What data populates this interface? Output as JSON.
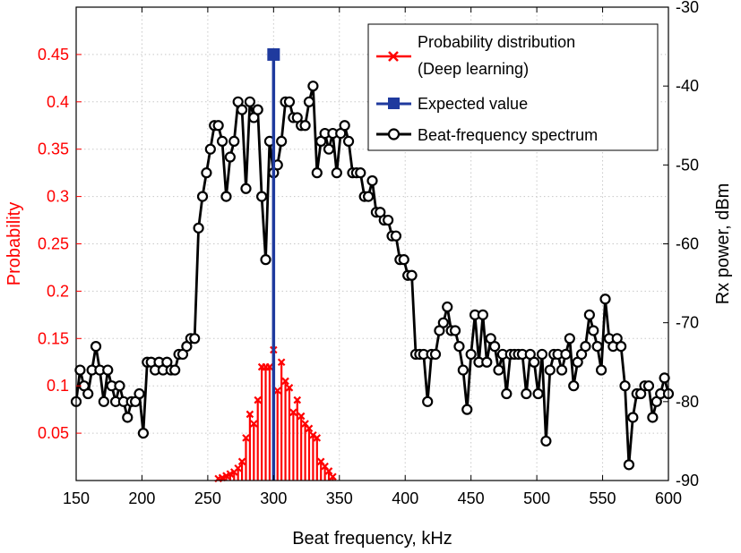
{
  "chart_data": {
    "type": "line",
    "xlabel": "Beat frequency, kHz",
    "ylabel_left": "Probability",
    "ylabel_right": "Rx power, dBm",
    "xlim": [
      150,
      600
    ],
    "ylim_left": [
      0,
      0.5
    ],
    "ylim_right": [
      -90,
      -30
    ],
    "x_ticks": [
      "150",
      "200",
      "250",
      "300",
      "350",
      "400",
      "450",
      "500",
      "550",
      "600"
    ],
    "y_left_ticks": [
      "0.05",
      "0.1",
      "0.15",
      "0.2",
      "0.25",
      "0.3",
      "0.35",
      "0.4",
      "0.45"
    ],
    "y_right_ticks": [
      "-30",
      "-40",
      "-50",
      "-60",
      "-70",
      "-80",
      "-90"
    ],
    "grid": true,
    "legend_position": "top-right",
    "colors": {
      "probability": "#ff0000",
      "expected": "#1f3a9e",
      "spectrum": "#000000"
    },
    "legend": [
      {
        "name": "Probability distribution",
        "name2": "(Deep learning)",
        "marker": "x"
      },
      {
        "name": "Expected value",
        "marker": "square"
      },
      {
        "name": "Beat-frequency spectrum",
        "marker": "circle"
      }
    ],
    "series": [
      {
        "name": "Probability distribution",
        "axis": "left",
        "style": "stem",
        "points": [
          [
            258,
            0.002
          ],
          [
            261,
            0.003
          ],
          [
            264,
            0.005
          ],
          [
            267,
            0.007
          ],
          [
            270,
            0.009
          ],
          [
            273,
            0.013
          ],
          [
            276,
            0.02
          ],
          [
            279,
            0.045
          ],
          [
            282,
            0.07
          ],
          [
            285,
            0.06
          ],
          [
            288,
            0.085
          ],
          [
            291,
            0.12
          ],
          [
            294,
            0.12
          ],
          [
            297,
            0.12
          ],
          [
            300,
            0.138
          ],
          [
            303,
            0.095
          ],
          [
            306,
            0.125
          ],
          [
            309,
            0.105
          ],
          [
            312,
            0.098
          ],
          [
            315,
            0.072
          ],
          [
            318,
            0.085
          ],
          [
            321,
            0.068
          ],
          [
            324,
            0.06
          ],
          [
            327,
            0.055
          ],
          [
            330,
            0.048
          ],
          [
            333,
            0.045
          ],
          [
            336,
            0.02
          ],
          [
            339,
            0.015
          ],
          [
            342,
            0.01
          ],
          [
            345,
            0.004
          ]
        ]
      },
      {
        "name": "Expected value",
        "axis": "left",
        "style": "stem",
        "points": [
          [
            300,
            0.45
          ]
        ]
      },
      {
        "name": "Beat-frequency spectrum",
        "axis": "right",
        "style": "line-circle",
        "points": [
          [
            150,
            -80
          ],
          [
            153,
            -76
          ],
          [
            156,
            -78
          ],
          [
            159,
            -79
          ],
          [
            162,
            -76
          ],
          [
            165,
            -73
          ],
          [
            168,
            -76
          ],
          [
            171,
            -80
          ],
          [
            174,
            -76
          ],
          [
            177,
            -78
          ],
          [
            180,
            -80
          ],
          [
            183,
            -78
          ],
          [
            186,
            -80
          ],
          [
            189,
            -82
          ],
          [
            192,
            -80
          ],
          [
            195,
            -80
          ],
          [
            198,
            -79
          ],
          [
            201,
            -84
          ],
          [
            204,
            -75
          ],
          [
            207,
            -75
          ],
          [
            210,
            -76
          ],
          [
            213,
            -75
          ],
          [
            216,
            -76
          ],
          [
            219,
            -75
          ],
          [
            222,
            -76
          ],
          [
            225,
            -76
          ],
          [
            228,
            -74
          ],
          [
            231,
            -74
          ],
          [
            234,
            -73
          ],
          [
            237,
            -72
          ],
          [
            240,
            -72
          ],
          [
            243,
            -58
          ],
          [
            246,
            -54
          ],
          [
            249,
            -51
          ],
          [
            252,
            -48
          ],
          [
            255,
            -45
          ],
          [
            258,
            -45
          ],
          [
            261,
            -47
          ],
          [
            264,
            -54
          ],
          [
            267,
            -49
          ],
          [
            270,
            -47
          ],
          [
            273,
            -42
          ],
          [
            276,
            -43
          ],
          [
            279,
            -53
          ],
          [
            282,
            -42
          ],
          [
            285,
            -44
          ],
          [
            288,
            -43
          ],
          [
            291,
            -54
          ],
          [
            294,
            -62
          ],
          [
            297,
            -47
          ],
          [
            300,
            -51
          ],
          [
            303,
            -50
          ],
          [
            306,
            -47
          ],
          [
            309,
            -42
          ],
          [
            312,
            -42
          ],
          [
            315,
            -44
          ],
          [
            318,
            -44
          ],
          [
            321,
            -45
          ],
          [
            324,
            -45
          ],
          [
            327,
            -42
          ],
          [
            330,
            -40
          ],
          [
            333,
            -51
          ],
          [
            336,
            -47
          ],
          [
            339,
            -46
          ],
          [
            342,
            -48
          ],
          [
            345,
            -46
          ],
          [
            348,
            -51
          ],
          [
            351,
            -46
          ],
          [
            354,
            -45
          ],
          [
            357,
            -47
          ],
          [
            360,
            -51
          ],
          [
            363,
            -51
          ],
          [
            366,
            -51
          ],
          [
            369,
            -54
          ],
          [
            372,
            -54
          ],
          [
            375,
            -52
          ],
          [
            378,
            -56
          ],
          [
            381,
            -56
          ],
          [
            384,
            -57
          ],
          [
            387,
            -57
          ],
          [
            390,
            -59
          ],
          [
            393,
            -59
          ],
          [
            396,
            -62
          ],
          [
            399,
            -62
          ],
          [
            402,
            -64
          ],
          [
            405,
            -64
          ],
          [
            408,
            -74
          ],
          [
            411,
            -74
          ],
          [
            414,
            -74
          ],
          [
            417,
            -80
          ],
          [
            420,
            -74
          ],
          [
            423,
            -74
          ],
          [
            426,
            -71
          ],
          [
            429,
            -70
          ],
          [
            432,
            -68
          ],
          [
            435,
            -71
          ],
          [
            438,
            -71
          ],
          [
            441,
            -73
          ],
          [
            444,
            -76
          ],
          [
            447,
            -81
          ],
          [
            450,
            -74
          ],
          [
            453,
            -69
          ],
          [
            456,
            -75
          ],
          [
            459,
            -69
          ],
          [
            462,
            -75
          ],
          [
            465,
            -72
          ],
          [
            468,
            -73
          ],
          [
            471,
            -76
          ],
          [
            474,
            -74
          ],
          [
            477,
            -79
          ],
          [
            480,
            -74
          ],
          [
            483,
            -74
          ],
          [
            486,
            -74
          ],
          [
            489,
            -74
          ],
          [
            492,
            -79
          ],
          [
            495,
            -74
          ],
          [
            498,
            -75
          ],
          [
            501,
            -79
          ],
          [
            504,
            -74
          ],
          [
            507,
            -85
          ],
          [
            510,
            -76
          ],
          [
            513,
            -74
          ],
          [
            516,
            -74
          ],
          [
            519,
            -76
          ],
          [
            522,
            -74
          ],
          [
            525,
            -72
          ],
          [
            528,
            -78
          ],
          [
            531,
            -75
          ],
          [
            534,
            -74
          ],
          [
            537,
            -73
          ],
          [
            540,
            -69
          ],
          [
            543,
            -71
          ],
          [
            546,
            -73
          ],
          [
            549,
            -76
          ],
          [
            552,
            -67
          ],
          [
            555,
            -72
          ],
          [
            558,
            -73
          ],
          [
            561,
            -72
          ],
          [
            564,
            -73
          ],
          [
            567,
            -78
          ],
          [
            570,
            -88
          ],
          [
            573,
            -82
          ],
          [
            576,
            -79
          ],
          [
            579,
            -79
          ],
          [
            582,
            -78
          ],
          [
            585,
            -78
          ],
          [
            588,
            -82
          ],
          [
            591,
            -80
          ],
          [
            594,
            -79
          ],
          [
            597,
            -77
          ],
          [
            600,
            -79
          ]
        ]
      }
    ]
  }
}
